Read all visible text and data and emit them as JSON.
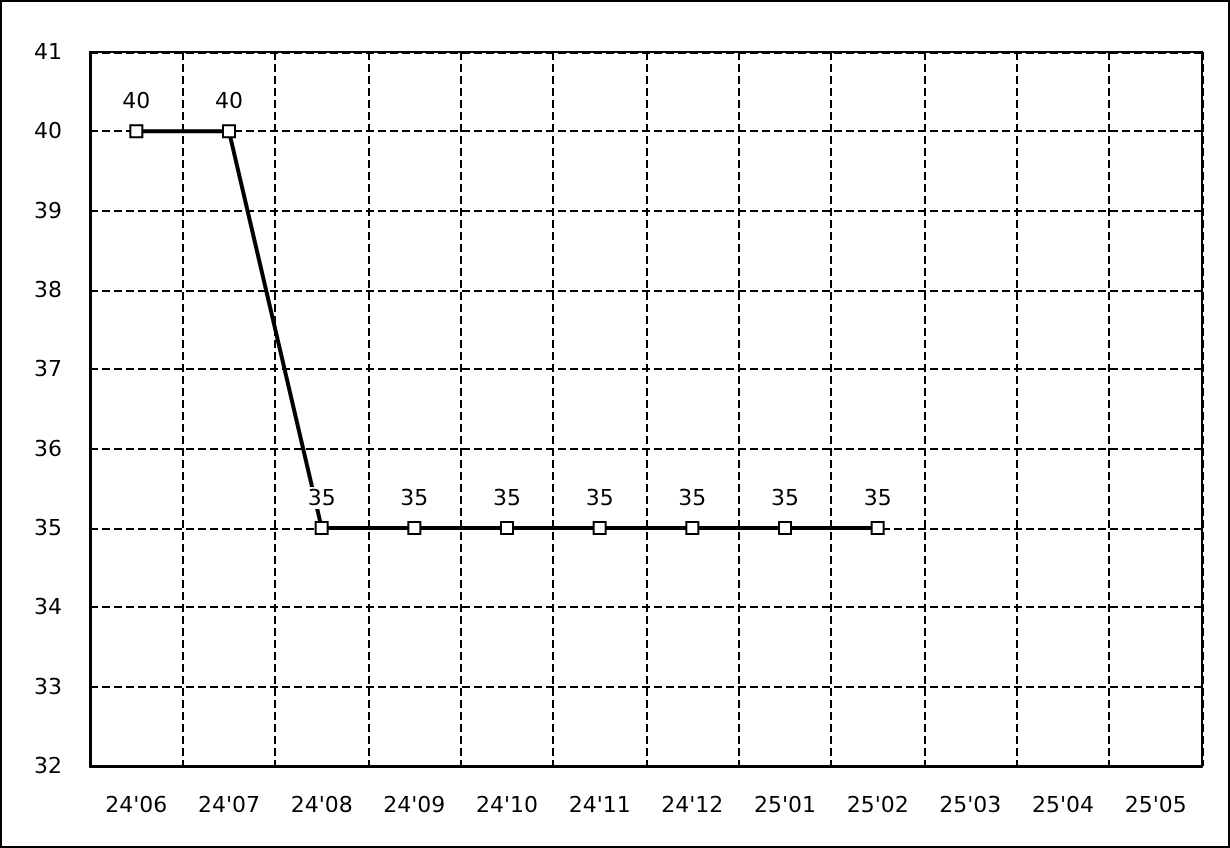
{
  "chart_data": {
    "type": "line",
    "categories": [
      "24'06",
      "24'07",
      "24'08",
      "24'09",
      "24'10",
      "24'11",
      "24'12",
      "25'01",
      "25'02",
      "25'03",
      "25'04",
      "25'05"
    ],
    "series": [
      {
        "color": "#000000",
        "values": [
          40,
          40,
          35,
          35,
          35,
          35,
          35,
          35,
          35,
          null,
          null,
          null
        ]
      }
    ],
    "ylim": [
      32,
      41
    ],
    "yticks": [
      32,
      33,
      34,
      35,
      36,
      37,
      38,
      39,
      40,
      41
    ],
    "grid": true,
    "marker": "square",
    "line_style": "solid",
    "data_labels": true
  }
}
